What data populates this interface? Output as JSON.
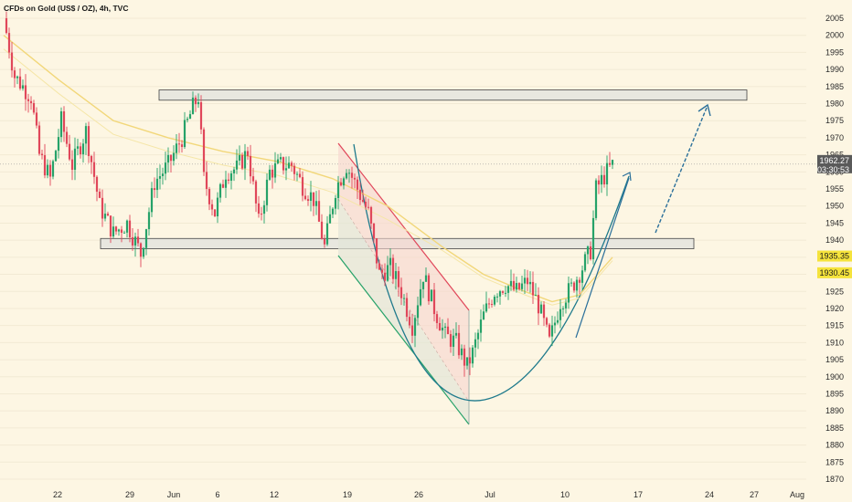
{
  "header": {
    "title": "CFDs on Gold (US$ / OZ), 4h, TVC"
  },
  "colors": {
    "background": "#fdf6e3",
    "up": "#26a269",
    "down": "#e0475a",
    "ma": "#f2d77a",
    "zone_fill": "#e4e4de",
    "zone_stroke": "#444444",
    "arrow": "#2a6f9a",
    "price_tag_bg": "#5a5a5a",
    "ma_tag_bg": "#f5e33c",
    "wedge_red": "#e0475a",
    "wedge_green": "#26a269",
    "curve": "#1f7a8c"
  },
  "chart_data": {
    "type": "candlestick",
    "symbol": "CFDs on Gold (US$ / OZ)",
    "timeframe": "4h",
    "source": "TVC",
    "x_ticks": [
      "22",
      "29",
      "Jun",
      "6",
      "12",
      "19",
      "26",
      "Jul",
      "10",
      "17",
      "24",
      "27",
      "Aug"
    ],
    "y_ticks": [
      1870,
      1875,
      1880,
      1885,
      1890,
      1895,
      1900,
      1905,
      1910,
      1915,
      1920,
      1925,
      1930,
      1935,
      1940,
      1945,
      1950,
      1955,
      1960,
      1965,
      1970,
      1975,
      1980,
      1985,
      1990,
      1995,
      2000,
      2005
    ],
    "ylim": [
      1868,
      2009
    ],
    "current_price": "1962.27",
    "countdown": "03:30:53",
    "ma_tags": [
      "1935.35",
      "1930.45"
    ],
    "resistance_zone": [
      1981,
      1984
    ],
    "support_zone": [
      1937.5,
      1940.5
    ],
    "close_path": [
      {
        "t": 0,
        "p": 2005
      },
      {
        "t": 4,
        "p": 1988
      },
      {
        "t": 8,
        "p": 1984
      },
      {
        "t": 10,
        "p": 1982
      },
      {
        "t": 13,
        "p": 1965
      },
      {
        "t": 17,
        "p": 1958
      },
      {
        "t": 21,
        "p": 1975
      },
      {
        "t": 25,
        "p": 1962
      },
      {
        "t": 30,
        "p": 1972
      },
      {
        "t": 35,
        "p": 1950
      },
      {
        "t": 40,
        "p": 1942
      },
      {
        "t": 45,
        "p": 1945
      },
      {
        "t": 50,
        "p": 1936
      },
      {
        "t": 55,
        "p": 1957
      },
      {
        "t": 60,
        "p": 1962
      },
      {
        "t": 65,
        "p": 1970
      },
      {
        "t": 69,
        "p": 1979
      },
      {
        "t": 71,
        "p": 1982
      },
      {
        "t": 73,
        "p": 1958
      },
      {
        "t": 77,
        "p": 1948
      },
      {
        "t": 81,
        "p": 1960
      },
      {
        "t": 85,
        "p": 1961
      },
      {
        "t": 89,
        "p": 1966
      },
      {
        "t": 93,
        "p": 1945
      },
      {
        "t": 97,
        "p": 1960
      },
      {
        "t": 101,
        "p": 1962
      },
      {
        "t": 105,
        "p": 1962
      },
      {
        "t": 109,
        "p": 1956
      },
      {
        "t": 113,
        "p": 1952
      },
      {
        "t": 117,
        "p": 1938
      },
      {
        "t": 121,
        "p": 1955
      },
      {
        "t": 125,
        "p": 1962
      },
      {
        "t": 129,
        "p": 1955
      },
      {
        "t": 133,
        "p": 1948
      },
      {
        "t": 137,
        "p": 1930
      },
      {
        "t": 141,
        "p": 1932
      },
      {
        "t": 145,
        "p": 1925
      },
      {
        "t": 149,
        "p": 1915
      },
      {
        "t": 153,
        "p": 1930
      },
      {
        "t": 157,
        "p": 1920
      },
      {
        "t": 161,
        "p": 1912
      },
      {
        "t": 165,
        "p": 1910
      },
      {
        "t": 169,
        "p": 1903
      },
      {
        "t": 171,
        "p": 1907
      },
      {
        "t": 175,
        "p": 1918
      },
      {
        "t": 179,
        "p": 1925
      },
      {
        "t": 183,
        "p": 1927
      },
      {
        "t": 187,
        "p": 1925
      },
      {
        "t": 191,
        "p": 1928
      },
      {
        "t": 195,
        "p": 1921
      },
      {
        "t": 199,
        "p": 1910
      },
      {
        "t": 203,
        "p": 1922
      },
      {
        "t": 207,
        "p": 1926
      },
      {
        "t": 211,
        "p": 1932
      },
      {
        "t": 214,
        "p": 1937
      },
      {
        "t": 216,
        "p": 1955
      },
      {
        "t": 220,
        "p": 1960
      },
      {
        "t": 222,
        "p": 1962
      }
    ],
    "ma_path": [
      {
        "t": 0,
        "p": 2000
      },
      {
        "t": 20,
        "p": 1987
      },
      {
        "t": 40,
        "p": 1975
      },
      {
        "t": 60,
        "p": 1970
      },
      {
        "t": 80,
        "p": 1966
      },
      {
        "t": 100,
        "p": 1963
      },
      {
        "t": 120,
        "p": 1958
      },
      {
        "t": 140,
        "p": 1950
      },
      {
        "t": 160,
        "p": 1938
      },
      {
        "t": 175,
        "p": 1930
      },
      {
        "t": 190,
        "p": 1925
      },
      {
        "t": 200,
        "p": 1922
      },
      {
        "t": 210,
        "p": 1924
      },
      {
        "t": 222,
        "p": 1935
      }
    ]
  }
}
